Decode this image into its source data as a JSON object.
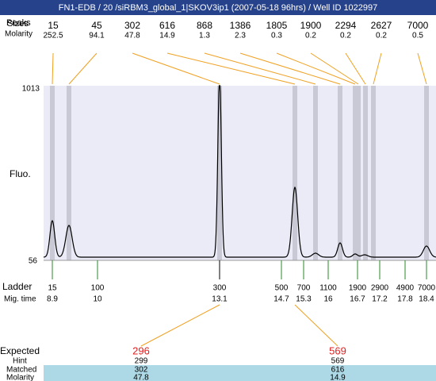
{
  "header": {
    "title": "FN1-EDB / 20 /siRBM3_global_1|SKOV3ip1 (2007-05-18 96hrs) / Well ID 1022997"
  },
  "peaks": {
    "row_labels": [
      "Peaks",
      "Sizes"
    ],
    "molarity_label": "Molarity",
    "sizes": [
      15,
      45,
      302,
      616,
      868,
      1386,
      1805,
      1900,
      2294,
      2627,
      7000
    ],
    "molarity": [
      252.5,
      94.1,
      47.8,
      14.9,
      1.3,
      2.3,
      0.3,
      0.2,
      0.2,
      0.2,
      0.5
    ]
  },
  "plot": {
    "y_label": "Fluo.",
    "y_max": 1013,
    "y_min": 56
  },
  "ladder": {
    "label": "Ladder",
    "time_label": "Mig. time",
    "sizes": [
      15,
      100,
      300,
      500,
      700,
      1100,
      1900,
      2900,
      4900,
      7000
    ],
    "times": [
      8.9,
      10,
      13.1,
      14.7,
      15.3,
      16,
      16.7,
      17.2,
      17.8,
      18.4
    ]
  },
  "expected": {
    "label": "Expected",
    "values": [
      296,
      569
    ]
  },
  "hint": {
    "label": "Hint",
    "values": [
      299,
      569
    ]
  },
  "matched": {
    "label": "Matched",
    "values": [
      302,
      616
    ]
  },
  "molarity": {
    "label": "Molarity",
    "values": [
      47.8,
      14.9
    ]
  }
}
